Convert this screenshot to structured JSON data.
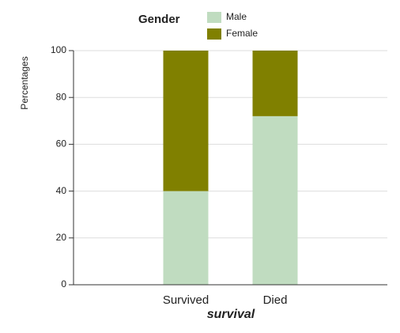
{
  "chart_data": {
    "type": "stacked_bar",
    "y_label": "Percentages",
    "x_label": "survival",
    "legend_title": "Gender",
    "categories": [
      "Survived",
      "Died"
    ],
    "series": [
      {
        "name": "Male",
        "color": "#c0dcc0",
        "values": [
          40,
          72
        ]
      },
      {
        "name": "Female",
        "color": "#808000",
        "values": [
          60,
          28
        ]
      }
    ],
    "ylim": [
      0,
      100
    ],
    "yticks": [
      0,
      20,
      40,
      60,
      80,
      100
    ],
    "grid": true
  }
}
